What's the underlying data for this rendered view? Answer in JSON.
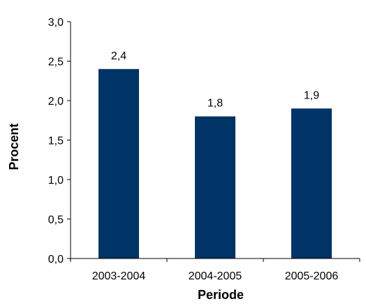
{
  "chart_data": {
    "type": "bar",
    "categories": [
      "2003-2004",
      "2004-2005",
      "2005-2006"
    ],
    "values": [
      2.4,
      1.8,
      1.9
    ],
    "value_labels": [
      "2,4",
      "1,8",
      "1,9"
    ],
    "title": "",
    "xlabel": "Periode",
    "ylabel": "Procent",
    "ylim": [
      0,
      3.0
    ],
    "yticks": [
      0,
      0.5,
      1.0,
      1.5,
      2.0,
      2.5,
      3.0
    ],
    "ytick_labels": [
      "0,0",
      "0,5",
      "1,0",
      "1,5",
      "2,0",
      "2,5",
      "3,0"
    ],
    "grid": false,
    "legend": "none",
    "bar_color": "#003366"
  }
}
